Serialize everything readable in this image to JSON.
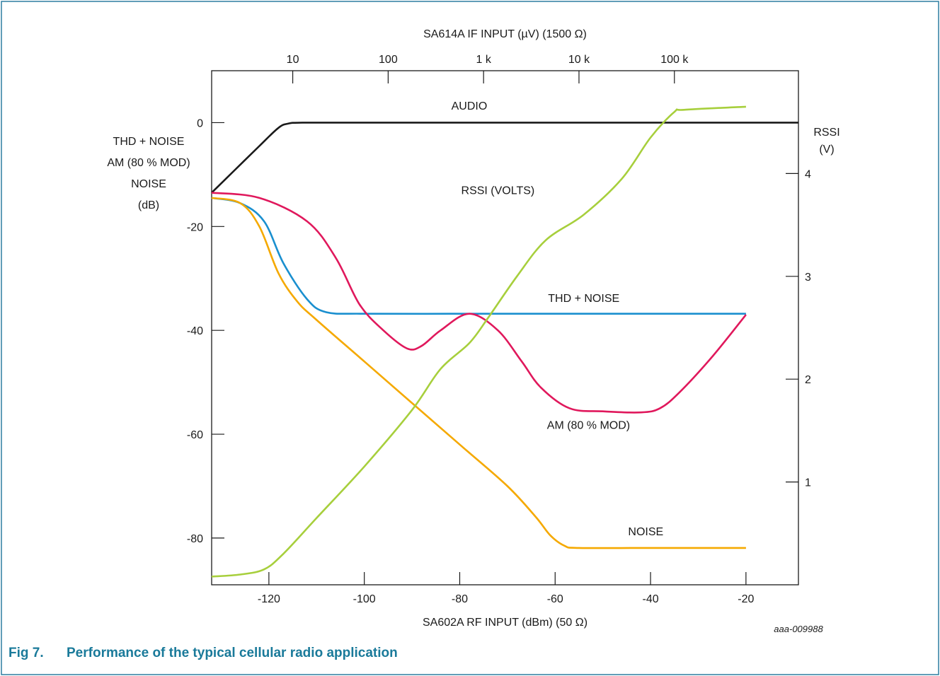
{
  "caption": {
    "figure_number": "Fig 7.",
    "title": "Performance of the typical cellular radio application"
  },
  "colors": {
    "frame": "#2d7da0",
    "caption": "#1a7a9a",
    "axis": "#1a1a1a",
    "audio": "#1a1a1a",
    "thd_noise": "#1a8fcf",
    "am": "#e0185c",
    "noise": "#f5a900",
    "rssi": "#a7cf3c"
  },
  "chart_data": {
    "type": "line",
    "title": "",
    "watermark": "aaa-009988",
    "xlabel": "SA602A RF INPUT (dBm) (50 Ω)",
    "xlim": [
      -132,
      -9
    ],
    "x_ticks": [
      -120,
      -100,
      -80,
      -60,
      -40,
      -20
    ],
    "x_tick_labels": [
      "-120",
      "-100",
      "-80",
      "-60",
      "-40",
      "-20"
    ],
    "x2label": "SA614A IF INPUT (µV) (1500 Ω)",
    "x2_ticks": [
      {
        "label": "10",
        "x": -115
      },
      {
        "label": "100",
        "x": -95
      },
      {
        "label": "1 k",
        "x": -75
      },
      {
        "label": "10 k",
        "x": -55
      },
      {
        "label": "100 k",
        "x": -35
      }
    ],
    "ylabel": [
      "THD + NOISE",
      "AM (80 % MOD)",
      "NOISE",
      "(dB)"
    ],
    "ylim": [
      -89,
      10
    ],
    "y_ticks": [
      0,
      -20,
      -40,
      -60,
      -80
    ],
    "y_tick_labels": [
      "0",
      "-20",
      "-40",
      "-60",
      "-80"
    ],
    "y2label": [
      "RSSI",
      "(V)"
    ],
    "y2lim": [
      0,
      5
    ],
    "y2_ticks": [
      1,
      2,
      3,
      4
    ],
    "y2_tick_labels": [
      "1",
      "2",
      "3",
      "4"
    ],
    "series": [
      {
        "name": "AUDIO",
        "color_key": "audio",
        "axis": "left",
        "points": [
          [
            -132,
            -13.5
          ],
          [
            -127,
            -9
          ],
          [
            -122,
            -4.5
          ],
          [
            -118,
            -1
          ],
          [
            -116,
            -0.2
          ],
          [
            -113,
            0
          ],
          [
            -100,
            0
          ],
          [
            -80,
            0
          ],
          [
            -60,
            0
          ],
          [
            -40,
            0
          ],
          [
            -20,
            0
          ],
          [
            -9,
            0
          ]
        ]
      },
      {
        "name": "THD + NOISE",
        "color_key": "thd_noise",
        "axis": "left",
        "points": [
          [
            -132,
            -14.5
          ],
          [
            -126,
            -15.5
          ],
          [
            -121,
            -19
          ],
          [
            -117,
            -27
          ],
          [
            -112,
            -34
          ],
          [
            -108,
            -36.5
          ],
          [
            -100,
            -36.8
          ],
          [
            -80,
            -36.8
          ],
          [
            -60,
            -36.8
          ],
          [
            -40,
            -36.8
          ],
          [
            -20,
            -36.8
          ]
        ]
      },
      {
        "name": "AM (80 % MOD)",
        "color_key": "am",
        "axis": "left",
        "points": [
          [
            -132,
            -13.5
          ],
          [
            -122,
            -14.5
          ],
          [
            -112,
            -19
          ],
          [
            -106,
            -26
          ],
          [
            -101,
            -35
          ],
          [
            -96,
            -40
          ],
          [
            -91,
            -43.5
          ],
          [
            -88,
            -43
          ],
          [
            -84,
            -40
          ],
          [
            -78,
            -36.8
          ],
          [
            -72,
            -40
          ],
          [
            -67,
            -46
          ],
          [
            -63,
            -51
          ],
          [
            -57,
            -55
          ],
          [
            -50,
            -55.6
          ],
          [
            -42,
            -55.8
          ],
          [
            -38,
            -55
          ],
          [
            -34,
            -52
          ],
          [
            -27,
            -45
          ],
          [
            -20,
            -37
          ]
        ]
      },
      {
        "name": "NOISE",
        "color_key": "noise",
        "axis": "left",
        "points": [
          [
            -132,
            -14.5
          ],
          [
            -126,
            -15.5
          ],
          [
            -122,
            -20
          ],
          [
            -118,
            -29
          ],
          [
            -114,
            -34.5
          ],
          [
            -110,
            -38
          ],
          [
            -100,
            -46
          ],
          [
            -90,
            -54
          ],
          [
            -80,
            -62
          ],
          [
            -70,
            -70
          ],
          [
            -64,
            -76
          ],
          [
            -61,
            -79.5
          ],
          [
            -58,
            -81.5
          ],
          [
            -55,
            -81.9
          ],
          [
            -40,
            -81.9
          ],
          [
            -20,
            -81.9
          ]
        ]
      },
      {
        "name": "RSSI (VOLTS)",
        "color_key": "rssi",
        "axis": "right",
        "points": [
          [
            -132,
            0.08
          ],
          [
            -126,
            0.1
          ],
          [
            -121,
            0.15
          ],
          [
            -117,
            0.3
          ],
          [
            -110,
            0.65
          ],
          [
            -100,
            1.15
          ],
          [
            -90,
            1.7
          ],
          [
            -84,
            2.1
          ],
          [
            -78,
            2.35
          ],
          [
            -74,
            2.6
          ],
          [
            -68,
            3.0
          ],
          [
            -62,
            3.35
          ],
          [
            -54,
            3.6
          ],
          [
            -46,
            3.95
          ],
          [
            -40,
            4.35
          ],
          [
            -35,
            4.6
          ],
          [
            -33,
            4.62
          ],
          [
            -20,
            4.65
          ]
        ]
      }
    ],
    "annotations": [
      {
        "text": "AUDIO",
        "x": -78,
        "y": 2.5,
        "axis": "left"
      },
      {
        "text": "RSSI (VOLTS)",
        "x": -72,
        "y": 3.8,
        "axis": "right"
      },
      {
        "text": "THD + NOISE",
        "x": -54,
        "y": -34.5,
        "axis": "left"
      },
      {
        "text": "AM (80 % MOD)",
        "x": -53,
        "y": -59,
        "axis": "left"
      },
      {
        "text": "NOISE",
        "x": -41,
        "y": -79.5,
        "axis": "left"
      }
    ]
  }
}
